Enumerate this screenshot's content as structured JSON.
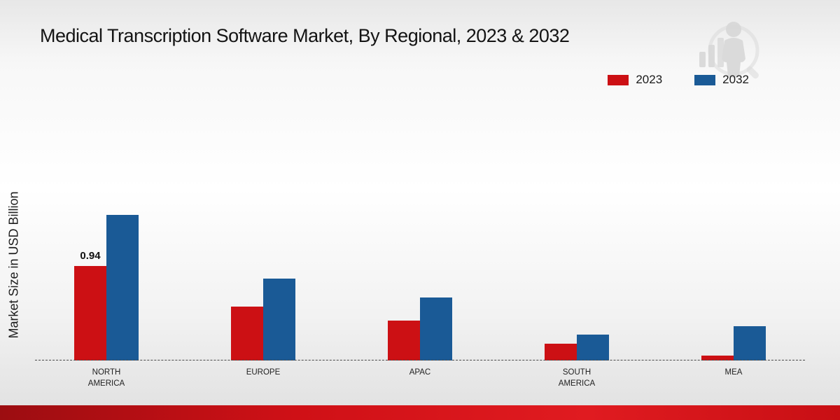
{
  "title": "Medical Transcription Software Market, By Regional, 2023 & 2032",
  "chart_data": {
    "type": "bar",
    "title": "Medical Transcription Software Market, By Regional, 2023 & 2032",
    "ylabel": "Market Size in USD Billion",
    "xlabel": "",
    "categories": [
      "NORTH AMERICA",
      "EUROPE",
      "APAC",
      "SOUTH AMERICA",
      "MEA"
    ],
    "series": [
      {
        "name": "2023",
        "color": "#cc1014",
        "values": [
          0.94,
          0.54,
          0.4,
          0.17,
          0.05
        ]
      },
      {
        "name": "2032",
        "color": "#1a5a96",
        "values": [
          1.45,
          0.82,
          0.63,
          0.26,
          0.34
        ]
      }
    ],
    "ylim": [
      0,
      1.6
    ],
    "grid": false,
    "baseline_style": "dashed",
    "legend_position": "top-right",
    "data_labels": [
      {
        "category": "NORTH AMERICA",
        "series": "2023",
        "text": "0.94"
      }
    ]
  },
  "footer_color": "#cf1016",
  "watermark": "growth-figure-logo"
}
